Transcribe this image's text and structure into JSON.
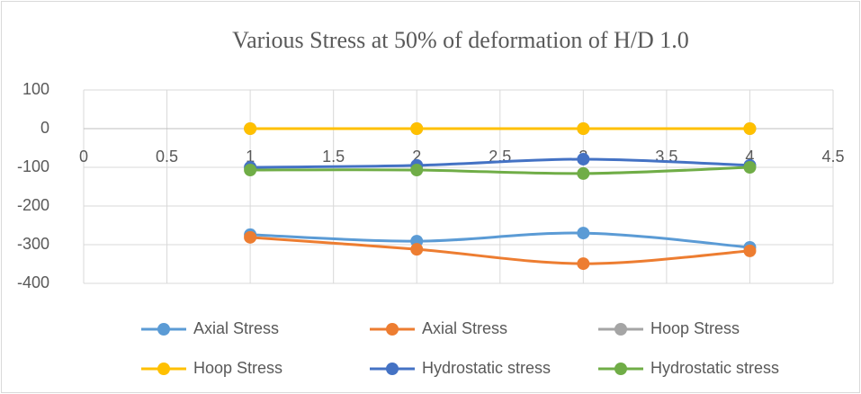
{
  "chart_data": {
    "type": "line",
    "smooth": true,
    "title": "Various Stress at 50% of deformation of H/D 1.0",
    "x": [
      1,
      2,
      3,
      4
    ],
    "series": [
      {
        "name": "Axial Stress",
        "color": "#5b9bd5",
        "values": [
          -274,
          -291,
          -270,
          -307
        ]
      },
      {
        "name": "Axial Stress",
        "color": "#ed7d31",
        "values": [
          -281,
          -312,
          -349,
          -316
        ]
      },
      {
        "name": "Hoop Stress",
        "color": "#a5a5a5",
        "values": [
          0,
          0,
          0,
          0
        ]
      },
      {
        "name": "Hoop Stress",
        "color": "#ffc000",
        "values": [
          0,
          0,
          0,
          0
        ]
      },
      {
        "name": "Hydrostatic stress",
        "color": "#4472c4",
        "values": [
          -100,
          -95,
          -79,
          -95
        ]
      },
      {
        "name": "Hydrostatic stress",
        "color": "#70ad47",
        "values": [
          -107,
          -107,
          -116,
          -100
        ]
      }
    ],
    "xlim": [
      0,
      4.5
    ],
    "xticks": [
      0,
      0.5,
      1,
      1.5,
      2,
      2.5,
      3,
      3.5,
      4,
      4.5
    ],
    "ylim": [
      -400,
      100
    ],
    "yticks": [
      100,
      0,
      -100,
      -200,
      -300,
      -400
    ],
    "grid": true,
    "legend": "bottom"
  }
}
